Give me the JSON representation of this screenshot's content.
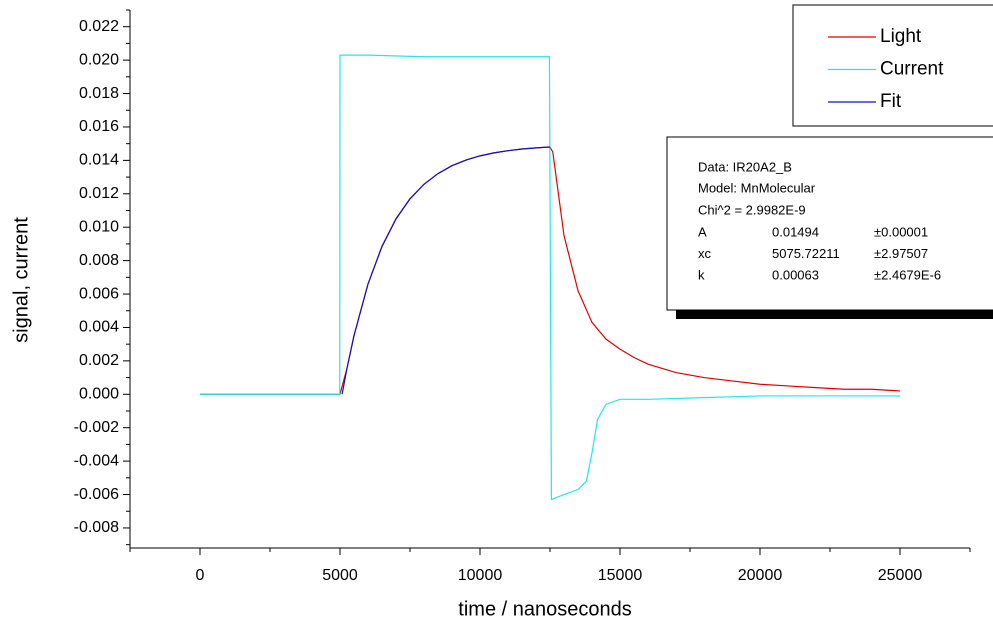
{
  "chart_data": {
    "type": "line",
    "xlabel": "time / nanoseconds",
    "ylabel": "signal, current",
    "xlim": [
      -2500,
      27500
    ],
    "ylim": [
      -0.0092,
      0.023
    ],
    "xticks": [
      0,
      5000,
      10000,
      15000,
      20000,
      25000
    ],
    "yticks": [
      {
        "value": -0.008,
        "label": "-0.008"
      },
      {
        "value": -0.006,
        "label": "-0.006"
      },
      {
        "value": -0.004,
        "label": "-0.004"
      },
      {
        "value": -0.002,
        "label": "-0.002"
      },
      {
        "value": 0,
        "label": "0.000"
      },
      {
        "value": 0.002,
        "label": "0.002"
      },
      {
        "value": 0.004,
        "label": "0.004"
      },
      {
        "value": 0.006,
        "label": "0.006"
      },
      {
        "value": 0.008,
        "label": "0.008"
      },
      {
        "value": 0.01,
        "label": "0.010"
      },
      {
        "value": 0.012,
        "label": "0.012"
      },
      {
        "value": 0.014,
        "label": "0.014"
      },
      {
        "value": 0.016,
        "label": "0.016"
      },
      {
        "value": 0.018,
        "label": "0.018"
      },
      {
        "value": 0.02,
        "label": "0.020"
      },
      {
        "value": 0.022,
        "label": "0.022"
      }
    ],
    "legend": "upper right",
    "series": [
      {
        "name": "Light",
        "color": "#e00000",
        "x": [
          0,
          2500,
          4750,
          5000,
          5250,
          5500,
          6000,
          6500,
          7000,
          7500,
          8000,
          8500,
          9000,
          9500,
          10000,
          10500,
          11000,
          11500,
          12000,
          12500,
          12600,
          13000,
          13500,
          14000,
          14500,
          15000,
          15500,
          16000,
          17000,
          18000,
          19000,
          20000,
          21000,
          22000,
          23000,
          24000,
          25000
        ],
        "values": [
          0,
          0,
          0,
          0,
          0.00156,
          0.00351,
          0.0066,
          0.00885,
          0.0105,
          0.0117,
          0.01257,
          0.01321,
          0.01368,
          0.01402,
          0.01427,
          0.01445,
          0.01458,
          0.01468,
          0.01475,
          0.0148,
          0.0145,
          0.0095,
          0.0062,
          0.0043,
          0.0033,
          0.0027,
          0.0022,
          0.0018,
          0.0013,
          0.001,
          0.0008,
          0.0006,
          0.0005,
          0.0004,
          0.0003,
          0.0003,
          0.0002
        ]
      },
      {
        "name": "Current",
        "color": "#22e8e8",
        "x": [
          0,
          3500,
          4990,
          5000,
          5500,
          6000,
          8000,
          10000,
          12480,
          12550,
          13000,
          13500,
          13800,
          14000,
          14200,
          14500,
          15000,
          16000,
          18000,
          20000,
          22000,
          25000
        ],
        "values": [
          0,
          0,
          0,
          0.0203,
          0.0203,
          0.0203,
          0.0202,
          0.0202,
          0.0202,
          -0.0063,
          -0.006,
          -0.0057,
          -0.0052,
          -0.0035,
          -0.0015,
          -0.0006,
          -0.0003,
          -0.0003,
          -0.0002,
          -0.0001,
          -0.0001,
          -0.0001
        ]
      },
      {
        "name": "Fit",
        "color": "#1010c0",
        "x": [
          5075,
          5250,
          5500,
          6000,
          6500,
          7000,
          7500,
          8000,
          8500,
          9000,
          9500,
          10000,
          10500,
          11000,
          11500,
          12000,
          12500
        ],
        "values": [
          0,
          0.00156,
          0.00351,
          0.0066,
          0.00885,
          0.0105,
          0.0117,
          0.01257,
          0.01321,
          0.01368,
          0.01402,
          0.01427,
          0.01445,
          0.01458,
          0.01468,
          0.01475,
          0.0148
        ]
      }
    ],
    "fit_box": {
      "data": "Data: IR20A2_B",
      "model": "Model: MnMolecular",
      "chi2": "Chi^2 = 2.9982E-9",
      "params": [
        {
          "name": "A",
          "value": 0.01494,
          "error": "±0.00001"
        },
        {
          "name": "xc",
          "value": 5075.72211,
          "error": "±2.97507"
        },
        {
          "name": "k",
          "value": 0.00063,
          "error": "±2.4679E-6"
        }
      ]
    }
  }
}
